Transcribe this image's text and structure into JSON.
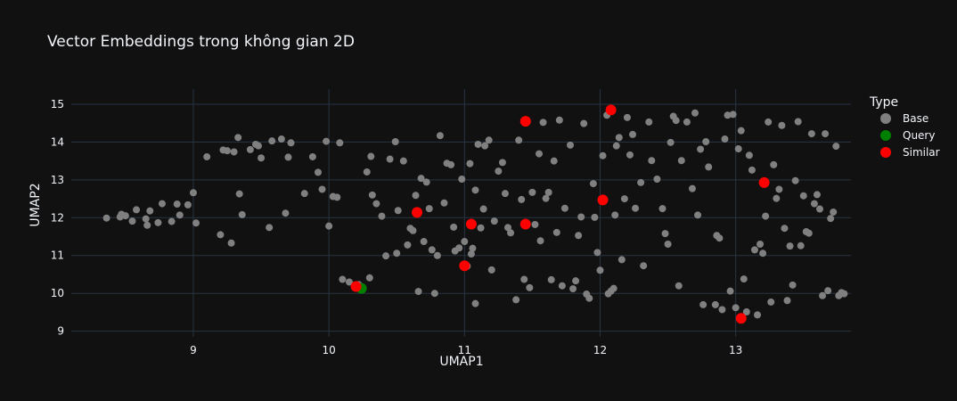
{
  "colors": {
    "background": "#111111",
    "grid": "#283442",
    "text": "#f2f5fa",
    "base": "#808080",
    "query": "#008000",
    "similar": "#ff0000"
  },
  "chart_data": {
    "type": "scatter",
    "title": "Vector Embeddings trong không gian 2D",
    "xlabel": "UMAP1",
    "ylabel": "UMAP2",
    "xlim": [
      8.1,
      13.85
    ],
    "ylim": [
      8.85,
      15.4
    ],
    "xticks": [
      9,
      10,
      11,
      12,
      13
    ],
    "yticks": [
      9,
      10,
      11,
      12,
      13,
      14,
      15
    ],
    "grid": true,
    "legend": {
      "title": "Type",
      "position": "top-right"
    },
    "series": [
      {
        "name": "Base",
        "color": "#808080",
        "points": [
          [
            8.36,
            11.99
          ],
          [
            8.46,
            12.02
          ],
          [
            8.47,
            12.09
          ],
          [
            8.5,
            12.05
          ],
          [
            8.55,
            11.91
          ],
          [
            8.58,
            12.21
          ],
          [
            8.65,
            11.97
          ],
          [
            8.66,
            11.8
          ],
          [
            8.68,
            12.18
          ],
          [
            8.74,
            11.87
          ],
          [
            8.77,
            12.37
          ],
          [
            8.84,
            11.9
          ],
          [
            8.88,
            12.36
          ],
          [
            8.9,
            12.07
          ],
          [
            8.96,
            12.34
          ],
          [
            9.0,
            12.66
          ],
          [
            9.02,
            11.86
          ],
          [
            9.1,
            13.61
          ],
          [
            9.2,
            11.55
          ],
          [
            9.22,
            13.79
          ],
          [
            9.25,
            13.77
          ],
          [
            9.28,
            11.33
          ],
          [
            9.3,
            13.74
          ],
          [
            9.33,
            14.12
          ],
          [
            9.34,
            12.63
          ],
          [
            9.36,
            12.08
          ],
          [
            9.42,
            13.8
          ],
          [
            9.46,
            13.94
          ],
          [
            9.48,
            13.9
          ],
          [
            9.5,
            13.58
          ],
          [
            9.56,
            11.74
          ],
          [
            9.58,
            14.03
          ],
          [
            9.65,
            14.08
          ],
          [
            9.68,
            12.12
          ],
          [
            9.7,
            13.6
          ],
          [
            9.72,
            13.98
          ],
          [
            9.82,
            12.64
          ],
          [
            9.88,
            13.61
          ],
          [
            9.92,
            13.2
          ],
          [
            9.95,
            12.75
          ],
          [
            9.98,
            14.02
          ],
          [
            10.0,
            11.78
          ],
          [
            10.03,
            12.56
          ],
          [
            10.06,
            12.54
          ],
          [
            10.08,
            13.98
          ],
          [
            10.1,
            10.37
          ],
          [
            10.15,
            10.3
          ],
          [
            10.2,
            10.19
          ],
          [
            10.22,
            10.23
          ],
          [
            10.28,
            13.21
          ],
          [
            10.3,
            10.41
          ],
          [
            10.31,
            13.62
          ],
          [
            10.32,
            12.6
          ],
          [
            10.35,
            12.37
          ],
          [
            10.39,
            12.04
          ],
          [
            10.42,
            10.99
          ],
          [
            10.45,
            13.55
          ],
          [
            10.49,
            14.01
          ],
          [
            10.5,
            11.06
          ],
          [
            10.51,
            12.19
          ],
          [
            10.55,
            13.5
          ],
          [
            10.58,
            11.28
          ],
          [
            10.6,
            11.72
          ],
          [
            10.62,
            11.66
          ],
          [
            10.64,
            12.59
          ],
          [
            10.66,
            10.05
          ],
          [
            10.68,
            13.04
          ],
          [
            10.7,
            11.37
          ],
          [
            10.72,
            12.94
          ],
          [
            10.74,
            12.24
          ],
          [
            10.76,
            11.15
          ],
          [
            10.78,
            10.0
          ],
          [
            10.8,
            11.0
          ],
          [
            10.82,
            14.17
          ],
          [
            10.85,
            12.39
          ],
          [
            10.87,
            13.44
          ],
          [
            10.9,
            13.4
          ],
          [
            10.92,
            11.75
          ],
          [
            10.93,
            11.12
          ],
          [
            10.96,
            11.2
          ],
          [
            10.98,
            13.02
          ],
          [
            11.0,
            11.37
          ],
          [
            11.02,
            10.72
          ],
          [
            11.04,
            13.43
          ],
          [
            11.05,
            11.04
          ],
          [
            11.06,
            11.19
          ],
          [
            11.08,
            12.73
          ],
          [
            11.08,
            9.73
          ],
          [
            11.1,
            13.94
          ],
          [
            11.12,
            11.73
          ],
          [
            11.14,
            12.23
          ],
          [
            11.15,
            13.9
          ],
          [
            11.18,
            14.05
          ],
          [
            11.2,
            10.62
          ],
          [
            11.22,
            11.91
          ],
          [
            11.25,
            13.23
          ],
          [
            11.28,
            13.46
          ],
          [
            11.3,
            12.64
          ],
          [
            11.32,
            11.74
          ],
          [
            11.34,
            11.6
          ],
          [
            11.38,
            9.83
          ],
          [
            11.4,
            14.05
          ],
          [
            11.42,
            12.48
          ],
          [
            11.44,
            10.37
          ],
          [
            11.46,
            14.55
          ],
          [
            11.48,
            10.15
          ],
          [
            11.5,
            12.67
          ],
          [
            11.52,
            11.82
          ],
          [
            11.55,
            13.69
          ],
          [
            11.56,
            11.39
          ],
          [
            11.58,
            14.52
          ],
          [
            11.6,
            12.51
          ],
          [
            11.62,
            12.67
          ],
          [
            11.64,
            10.36
          ],
          [
            11.66,
            13.5
          ],
          [
            11.68,
            11.61
          ],
          [
            11.7,
            14.58
          ],
          [
            11.72,
            10.2
          ],
          [
            11.74,
            12.25
          ],
          [
            11.78,
            13.92
          ],
          [
            11.8,
            10.12
          ],
          [
            11.82,
            10.33
          ],
          [
            11.84,
            11.53
          ],
          [
            11.86,
            12.02
          ],
          [
            11.88,
            14.49
          ],
          [
            11.9,
            9.98
          ],
          [
            11.92,
            9.87
          ],
          [
            11.95,
            12.9
          ],
          [
            11.96,
            12.01
          ],
          [
            11.98,
            11.08
          ],
          [
            12.0,
            10.61
          ],
          [
            12.02,
            13.64
          ],
          [
            12.05,
            14.71
          ],
          [
            12.06,
            9.99
          ],
          [
            12.08,
            10.06
          ],
          [
            12.1,
            10.13
          ],
          [
            12.11,
            12.07
          ],
          [
            12.12,
            13.9
          ],
          [
            12.14,
            14.12
          ],
          [
            12.16,
            10.89
          ],
          [
            12.18,
            12.5
          ],
          [
            12.2,
            14.65
          ],
          [
            12.22,
            13.66
          ],
          [
            12.24,
            14.2
          ],
          [
            12.26,
            12.25
          ],
          [
            12.3,
            12.93
          ],
          [
            12.32,
            10.73
          ],
          [
            12.36,
            14.53
          ],
          [
            12.38,
            13.51
          ],
          [
            12.42,
            13.02
          ],
          [
            12.46,
            12.24
          ],
          [
            12.48,
            11.58
          ],
          [
            12.5,
            11.3
          ],
          [
            12.52,
            13.99
          ],
          [
            12.54,
            14.68
          ],
          [
            12.56,
            14.57
          ],
          [
            12.58,
            10.2
          ],
          [
            12.6,
            13.51
          ],
          [
            12.64,
            14.53
          ],
          [
            12.68,
            12.77
          ],
          [
            12.7,
            14.77
          ],
          [
            12.72,
            12.07
          ],
          [
            12.74,
            13.81
          ],
          [
            12.76,
            9.7
          ],
          [
            12.78,
            14.01
          ],
          [
            12.8,
            13.34
          ],
          [
            12.85,
            9.7
          ],
          [
            12.86,
            11.53
          ],
          [
            12.88,
            11.46
          ],
          [
            12.9,
            9.57
          ],
          [
            12.92,
            14.08
          ],
          [
            12.94,
            14.71
          ],
          [
            12.96,
            10.06
          ],
          [
            12.98,
            14.73
          ],
          [
            13.0,
            9.62
          ],
          [
            13.02,
            13.82
          ],
          [
            13.04,
            14.3
          ],
          [
            13.06,
            10.38
          ],
          [
            13.08,
            9.51
          ],
          [
            13.1,
            13.65
          ],
          [
            13.12,
            13.26
          ],
          [
            13.14,
            11.15
          ],
          [
            13.16,
            9.43
          ],
          [
            13.18,
            11.3
          ],
          [
            13.2,
            11.06
          ],
          [
            13.22,
            12.04
          ],
          [
            13.24,
            14.53
          ],
          [
            13.26,
            9.77
          ],
          [
            13.28,
            13.4
          ],
          [
            13.3,
            12.51
          ],
          [
            13.32,
            12.75
          ],
          [
            13.34,
            14.44
          ],
          [
            13.36,
            11.72
          ],
          [
            13.38,
            9.81
          ],
          [
            13.4,
            11.25
          ],
          [
            13.42,
            10.22
          ],
          [
            13.44,
            12.98
          ],
          [
            13.46,
            14.54
          ],
          [
            13.48,
            11.26
          ],
          [
            13.5,
            12.58
          ],
          [
            13.52,
            11.63
          ],
          [
            13.54,
            11.59
          ],
          [
            13.56,
            14.22
          ],
          [
            13.58,
            12.37
          ],
          [
            13.6,
            12.61
          ],
          [
            13.62,
            12.23
          ],
          [
            13.64,
            9.94
          ],
          [
            13.66,
            14.22
          ],
          [
            13.68,
            10.07
          ],
          [
            13.7,
            11.98
          ],
          [
            13.72,
            12.15
          ],
          [
            13.74,
            13.89
          ],
          [
            13.76,
            9.94
          ],
          [
            13.78,
            10.02
          ],
          [
            13.8,
            9.99
          ]
        ]
      },
      {
        "name": "Query",
        "color": "#008000",
        "points": [
          [
            10.24,
            10.13
          ]
        ]
      },
      {
        "name": "Similar",
        "color": "#ff0000",
        "points": [
          [
            10.2,
            10.18
          ],
          [
            10.65,
            12.14
          ],
          [
            11.0,
            10.73
          ],
          [
            11.05,
            11.83
          ],
          [
            11.45,
            14.55
          ],
          [
            11.45,
            11.83
          ],
          [
            12.02,
            12.47
          ],
          [
            12.08,
            14.85
          ],
          [
            13.04,
            9.34
          ],
          [
            13.21,
            12.93
          ]
        ]
      }
    ]
  }
}
